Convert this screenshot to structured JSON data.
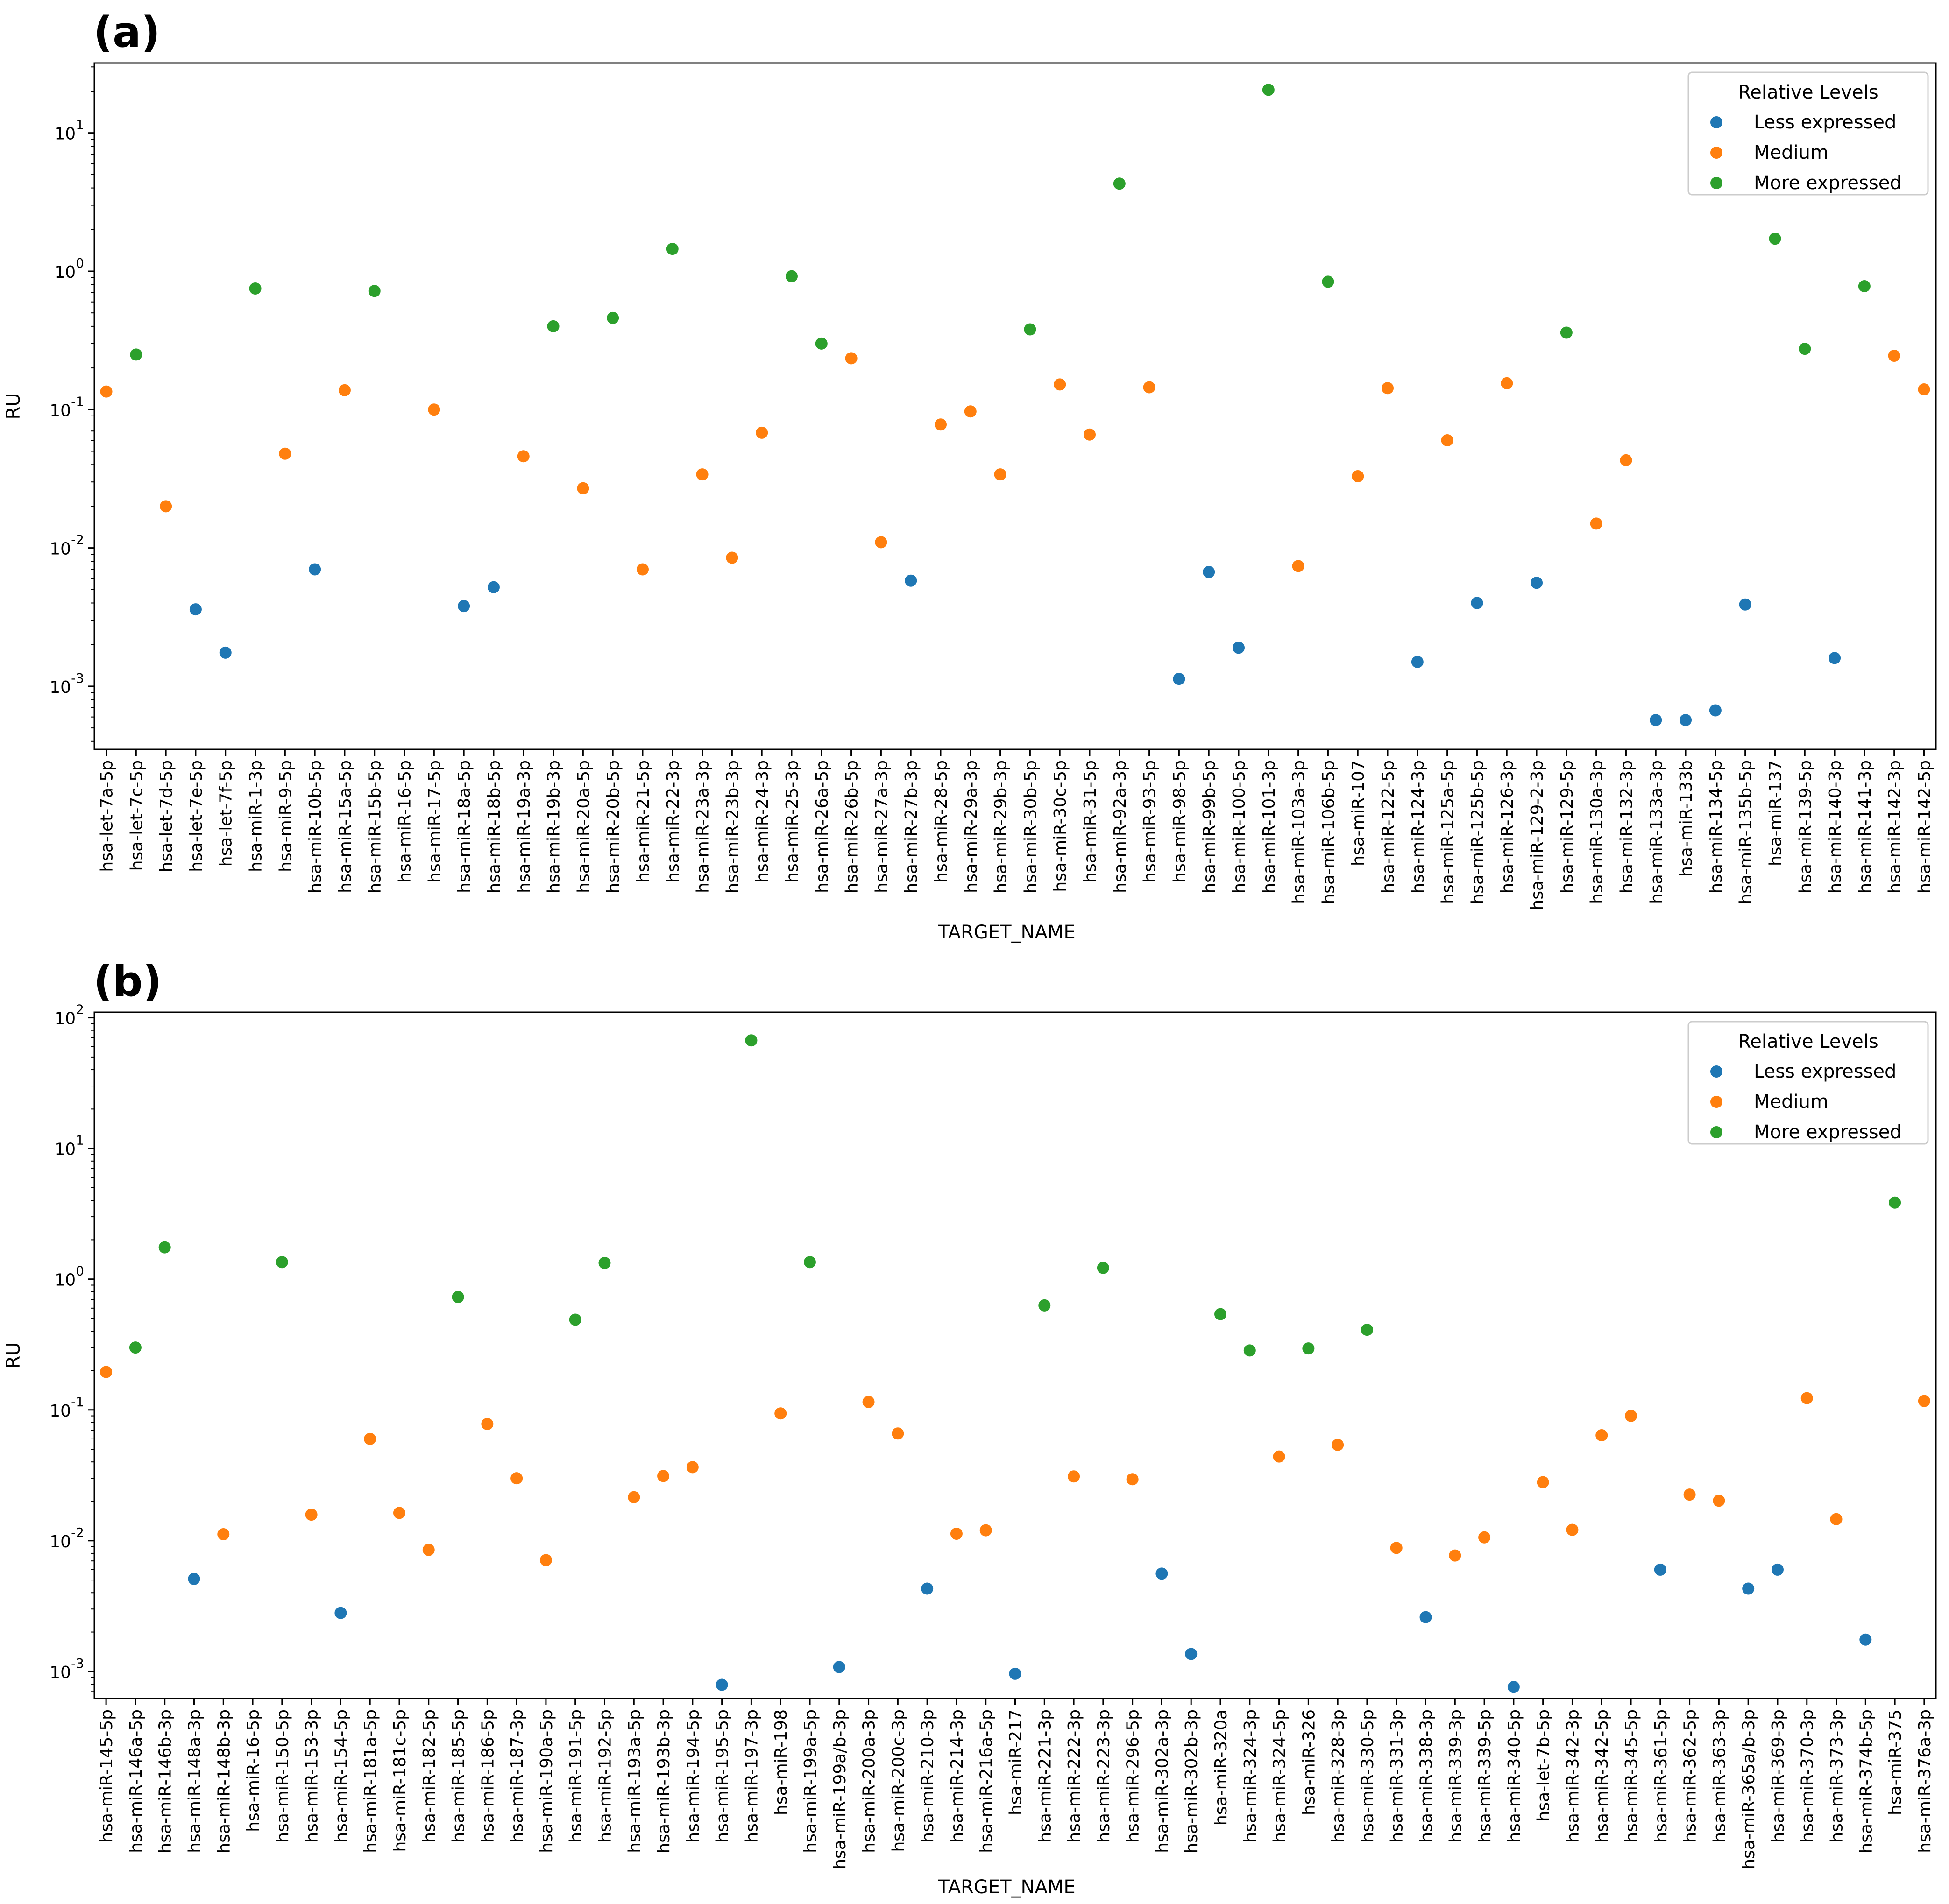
{
  "colors": {
    "Less expressed": "#1f77b4",
    "Medium": "#ff7f0e",
    "More expressed": "#2ca02c"
  },
  "chart_data": [
    {
      "type": "scatter",
      "panel_label": "(a)",
      "xlabel": "TARGET_NAME",
      "ylabel": "RU",
      "yscale": "log",
      "ylim": [
        0.00035,
        32
      ],
      "yticks": [
        0.001,
        0.01,
        0.1,
        1,
        10
      ],
      "ytick_labels": [
        "10^-3",
        "10^-2",
        "10^-1",
        "10^0",
        "10^1"
      ],
      "grid": false,
      "legend": {
        "title": "Relative Levels",
        "position": "top-right",
        "entries": [
          "Less expressed",
          "Medium",
          "More expressed"
        ]
      },
      "categories": [
        "hsa-let-7a-5p",
        "hsa-let-7c-5p",
        "hsa-let-7d-5p",
        "hsa-let-7e-5p",
        "hsa-let-7f-5p",
        "hsa-miR-1-3p",
        "hsa-miR-9-5p",
        "hsa-miR-10b-5p",
        "hsa-miR-15a-5p",
        "hsa-miR-15b-5p",
        "hsa-miR-16-5p",
        "hsa-miR-17-5p",
        "hsa-miR-18a-5p",
        "hsa-miR-18b-5p",
        "hsa-miR-19a-3p",
        "hsa-miR-19b-3p",
        "hsa-miR-20a-5p",
        "hsa-miR-20b-5p",
        "hsa-miR-21-5p",
        "hsa-miR-22-3p",
        "hsa-miR-23a-3p",
        "hsa-miR-23b-3p",
        "hsa-miR-24-3p",
        "hsa-miR-25-3p",
        "hsa-miR-26a-5p",
        "hsa-miR-26b-5p",
        "hsa-miR-27a-3p",
        "hsa-miR-27b-3p",
        "hsa-miR-28-5p",
        "hsa-miR-29a-3p",
        "hsa-miR-29b-3p",
        "hsa-miR-30b-5p",
        "hsa-miR-30c-5p",
        "hsa-miR-31-5p",
        "hsa-miR-92a-3p",
        "hsa-miR-93-5p",
        "hsa-miR-98-5p",
        "hsa-miR-99b-5p",
        "hsa-miR-100-5p",
        "hsa-miR-101-3p",
        "hsa-miR-103a-3p",
        "hsa-miR-106b-5p",
        "hsa-miR-107",
        "hsa-miR-122-5p",
        "hsa-miR-124-3p",
        "hsa-miR-125a-5p",
        "hsa-miR-125b-5p",
        "hsa-miR-126-3p",
        "hsa-miR-129-2-3p",
        "hsa-miR-129-5p",
        "hsa-miR-130a-3p",
        "hsa-miR-132-3p",
        "hsa-miR-133a-3p",
        "hsa-miR-133b",
        "hsa-miR-134-5p",
        "hsa-miR-135b-5p",
        "hsa-miR-137",
        "hsa-miR-139-5p",
        "hsa-miR-140-3p",
        "hsa-miR-141-3p",
        "hsa-miR-142-3p",
        "hsa-miR-142-5p"
      ],
      "points": [
        {
          "x": "hsa-let-7a-5p",
          "y": 0.135,
          "level": "Medium"
        },
        {
          "x": "hsa-let-7c-5p",
          "y": 0.25,
          "level": "More expressed"
        },
        {
          "x": "hsa-let-7d-5p",
          "y": 0.02,
          "level": "Medium"
        },
        {
          "x": "hsa-let-7e-5p",
          "y": 0.0036,
          "level": "Less expressed"
        },
        {
          "x": "hsa-let-7f-5p",
          "y": 0.00175,
          "level": "Less expressed"
        },
        {
          "x": "hsa-miR-1-3p",
          "y": 0.75,
          "level": "More expressed"
        },
        {
          "x": "hsa-miR-9-5p",
          "y": 0.048,
          "level": "Medium"
        },
        {
          "x": "hsa-miR-10b-5p",
          "y": 0.007,
          "level": "Less expressed"
        },
        {
          "x": "hsa-miR-15a-5p",
          "y": 0.138,
          "level": "Medium"
        },
        {
          "x": "hsa-miR-15b-5p",
          "y": 0.72,
          "level": "More expressed"
        },
        {
          "x": "hsa-miR-17-5p",
          "y": 0.1,
          "level": "Medium"
        },
        {
          "x": "hsa-miR-18a-5p",
          "y": 0.0038,
          "level": "Less expressed"
        },
        {
          "x": "hsa-miR-18b-5p",
          "y": 0.0052,
          "level": "Less expressed"
        },
        {
          "x": "hsa-miR-19a-3p",
          "y": 0.046,
          "level": "Medium"
        },
        {
          "x": "hsa-miR-19b-3p",
          "y": 0.4,
          "level": "More expressed"
        },
        {
          "x": "hsa-miR-20a-5p",
          "y": 0.027,
          "level": "Medium"
        },
        {
          "x": "hsa-miR-20b-5p",
          "y": 0.46,
          "level": "More expressed"
        },
        {
          "x": "hsa-miR-21-5p",
          "y": 0.007,
          "level": "Medium"
        },
        {
          "x": "hsa-miR-22-3p",
          "y": 1.45,
          "level": "More expressed"
        },
        {
          "x": "hsa-miR-23a-3p",
          "y": 0.034,
          "level": "Medium"
        },
        {
          "x": "hsa-miR-23b-3p",
          "y": 0.0085,
          "level": "Medium"
        },
        {
          "x": "hsa-miR-24-3p",
          "y": 0.068,
          "level": "Medium"
        },
        {
          "x": "hsa-miR-25-3p",
          "y": 0.92,
          "level": "More expressed"
        },
        {
          "x": "hsa-miR-26a-5p",
          "y": 0.3,
          "level": "More expressed"
        },
        {
          "x": "hsa-miR-26b-5p",
          "y": 0.235,
          "level": "Medium"
        },
        {
          "x": "hsa-miR-27a-3p",
          "y": 0.011,
          "level": "Medium"
        },
        {
          "x": "hsa-miR-27b-3p",
          "y": 0.0058,
          "level": "Less expressed"
        },
        {
          "x": "hsa-miR-28-5p",
          "y": 0.078,
          "level": "Medium"
        },
        {
          "x": "hsa-miR-29a-3p",
          "y": 0.097,
          "level": "Medium"
        },
        {
          "x": "hsa-miR-29b-3p",
          "y": 0.034,
          "level": "Medium"
        },
        {
          "x": "hsa-miR-30b-5p",
          "y": 0.38,
          "level": "More expressed"
        },
        {
          "x": "hsa-miR-30c-5p",
          "y": 0.152,
          "level": "Medium"
        },
        {
          "x": "hsa-miR-31-5p",
          "y": 0.066,
          "level": "Medium"
        },
        {
          "x": "hsa-miR-92a-3p",
          "y": 4.3,
          "level": "More expressed"
        },
        {
          "x": "hsa-miR-93-5p",
          "y": 0.145,
          "level": "Medium"
        },
        {
          "x": "hsa-miR-98-5p",
          "y": 0.00113,
          "level": "Less expressed"
        },
        {
          "x": "hsa-miR-99b-5p",
          "y": 0.0067,
          "level": "Less expressed"
        },
        {
          "x": "hsa-miR-100-5p",
          "y": 0.0019,
          "level": "Less expressed"
        },
        {
          "x": "hsa-miR-101-3p",
          "y": 20.5,
          "level": "More expressed"
        },
        {
          "x": "hsa-miR-103a-3p",
          "y": 0.0074,
          "level": "Medium"
        },
        {
          "x": "hsa-miR-106b-5p",
          "y": 0.84,
          "level": "More expressed"
        },
        {
          "x": "hsa-miR-107",
          "y": 0.033,
          "level": "Medium"
        },
        {
          "x": "hsa-miR-122-5p",
          "y": 0.143,
          "level": "Medium"
        },
        {
          "x": "hsa-miR-124-3p",
          "y": 0.0015,
          "level": "Less expressed"
        },
        {
          "x": "hsa-miR-125a-5p",
          "y": 0.06,
          "level": "Medium"
        },
        {
          "x": "hsa-miR-125b-5p",
          "y": 0.004,
          "level": "Less expressed"
        },
        {
          "x": "hsa-miR-126-3p",
          "y": 0.155,
          "level": "Medium"
        },
        {
          "x": "hsa-miR-129-2-3p",
          "y": 0.0056,
          "level": "Less expressed"
        },
        {
          "x": "hsa-miR-129-5p",
          "y": 0.36,
          "level": "More expressed"
        },
        {
          "x": "hsa-miR-130a-3p",
          "y": 0.015,
          "level": "Medium"
        },
        {
          "x": "hsa-miR-132-3p",
          "y": 0.043,
          "level": "Medium"
        },
        {
          "x": "hsa-miR-133a-3p",
          "y": 0.00057,
          "level": "Less expressed"
        },
        {
          "x": "hsa-miR-133b",
          "y": 0.00057,
          "level": "Less expressed"
        },
        {
          "x": "hsa-miR-134-5p",
          "y": 0.00067,
          "level": "Less expressed"
        },
        {
          "x": "hsa-miR-135b-5p",
          "y": 0.0039,
          "level": "Less expressed"
        },
        {
          "x": "hsa-miR-137",
          "y": 1.72,
          "level": "More expressed"
        },
        {
          "x": "hsa-miR-139-5p",
          "y": 0.275,
          "level": "More expressed"
        },
        {
          "x": "hsa-miR-140-3p",
          "y": 0.0016,
          "level": "Less expressed"
        },
        {
          "x": "hsa-miR-141-3p",
          "y": 0.78,
          "level": "More expressed"
        },
        {
          "x": "hsa-miR-142-3p",
          "y": 0.245,
          "level": "Medium"
        },
        {
          "x": "hsa-miR-142-5p",
          "y": 0.14,
          "level": "Medium"
        }
      ]
    },
    {
      "type": "scatter",
      "panel_label": "(b)",
      "xlabel": "TARGET_NAME",
      "ylabel": "RU",
      "yscale": "log",
      "ylim": [
        0.00062,
        110
      ],
      "yticks": [
        0.001,
        0.01,
        0.1,
        1,
        10,
        100
      ],
      "ytick_labels": [
        "10^-3",
        "10^-2",
        "10^-1",
        "10^0",
        "10^1",
        "10^2"
      ],
      "grid": false,
      "legend": {
        "title": "Relative Levels",
        "position": "top-right",
        "entries": [
          "Less expressed",
          "Medium",
          "More expressed"
        ]
      },
      "categories": [
        "hsa-miR-145-5p",
        "hsa-miR-146a-5p",
        "hsa-miR-146b-3p",
        "hsa-miR-148a-3p",
        "hsa-miR-148b-3p",
        "hsa-miR-16-5p",
        "hsa-miR-150-5p",
        "hsa-miR-153-3p",
        "hsa-miR-154-5p",
        "hsa-miR-181a-5p",
        "hsa-miR-181c-5p",
        "hsa-miR-182-5p",
        "hsa-miR-185-5p",
        "hsa-miR-186-5p",
        "hsa-miR-187-3p",
        "hsa-miR-190a-5p",
        "hsa-miR-191-5p",
        "hsa-miR-192-5p",
        "hsa-miR-193a-5p",
        "hsa-miR-193b-3p",
        "hsa-miR-194-5p",
        "hsa-miR-195-5p",
        "hsa-miR-197-3p",
        "hsa-miR-198",
        "hsa-miR-199a-5p",
        "hsa-miR-199a/b-3p",
        "hsa-miR-200a-3p",
        "hsa-miR-200c-3p",
        "hsa-miR-210-3p",
        "hsa-miR-214-3p",
        "hsa-miR-216a-5p",
        "hsa-miR-217",
        "hsa-miR-221-3p",
        "hsa-miR-222-3p",
        "hsa-miR-223-3p",
        "hsa-miR-296-5p",
        "hsa-miR-302a-3p",
        "hsa-miR-302b-3p",
        "hsa-miR-320a",
        "hsa-miR-324-3p",
        "hsa-miR-324-5p",
        "hsa-miR-326",
        "hsa-miR-328-3p",
        "hsa-miR-330-5p",
        "hsa-miR-331-3p",
        "hsa-miR-338-3p",
        "hsa-miR-339-3p",
        "hsa-miR-339-5p",
        "hsa-miR-340-5p",
        "hsa-let-7b-5p",
        "hsa-miR-342-3p",
        "hsa-miR-342-5p",
        "hsa-miR-345-5p",
        "hsa-miR-361-5p",
        "hsa-miR-362-5p",
        "hsa-miR-363-3p",
        "hsa-miR-365a/b-3p",
        "hsa-miR-369-3p",
        "hsa-miR-370-3p",
        "hsa-miR-373-3p",
        "hsa-miR-374b-5p",
        "hsa-miR-375",
        "hsa-miR-376a-3p"
      ],
      "points": [
        {
          "x": "hsa-miR-145-5p",
          "y": 0.195,
          "level": "Medium"
        },
        {
          "x": "hsa-miR-146a-5p",
          "y": 0.3,
          "level": "More expressed"
        },
        {
          "x": "hsa-miR-146b-3p",
          "y": 1.75,
          "level": "More expressed"
        },
        {
          "x": "hsa-miR-148a-3p",
          "y": 0.0051,
          "level": "Less expressed"
        },
        {
          "x": "hsa-miR-148b-3p",
          "y": 0.0112,
          "level": "Medium"
        },
        {
          "x": "hsa-miR-150-5p",
          "y": 1.35,
          "level": "More expressed"
        },
        {
          "x": "hsa-miR-153-3p",
          "y": 0.0158,
          "level": "Medium"
        },
        {
          "x": "hsa-miR-154-5p",
          "y": 0.0028,
          "level": "Less expressed"
        },
        {
          "x": "hsa-miR-181a-5p",
          "y": 0.06,
          "level": "Medium"
        },
        {
          "x": "hsa-miR-181c-5p",
          "y": 0.0163,
          "level": "Medium"
        },
        {
          "x": "hsa-miR-182-5p",
          "y": 0.0085,
          "level": "Medium"
        },
        {
          "x": "hsa-miR-185-5p",
          "y": 0.73,
          "level": "More expressed"
        },
        {
          "x": "hsa-miR-186-5p",
          "y": 0.078,
          "level": "Medium"
        },
        {
          "x": "hsa-miR-187-3p",
          "y": 0.03,
          "level": "Medium"
        },
        {
          "x": "hsa-miR-190a-5p",
          "y": 0.0071,
          "level": "Medium"
        },
        {
          "x": "hsa-miR-191-5p",
          "y": 0.49,
          "level": "More expressed"
        },
        {
          "x": "hsa-miR-192-5p",
          "y": 1.33,
          "level": "More expressed"
        },
        {
          "x": "hsa-miR-193a-5p",
          "y": 0.0215,
          "level": "Medium"
        },
        {
          "x": "hsa-miR-193b-3p",
          "y": 0.0312,
          "level": "Medium"
        },
        {
          "x": "hsa-miR-194-5p",
          "y": 0.0365,
          "level": "Medium"
        },
        {
          "x": "hsa-miR-195-5p",
          "y": 0.00079,
          "level": "Less expressed"
        },
        {
          "x": "hsa-miR-197-3p",
          "y": 67,
          "level": "More expressed"
        },
        {
          "x": "hsa-miR-198",
          "y": 0.094,
          "level": "Medium"
        },
        {
          "x": "hsa-miR-199a-5p",
          "y": 1.35,
          "level": "More expressed"
        },
        {
          "x": "hsa-miR-199a/b-3p",
          "y": 0.00108,
          "level": "Less expressed"
        },
        {
          "x": "hsa-miR-200a-3p",
          "y": 0.115,
          "level": "Medium"
        },
        {
          "x": "hsa-miR-200c-3p",
          "y": 0.066,
          "level": "Medium"
        },
        {
          "x": "hsa-miR-210-3p",
          "y": 0.0043,
          "level": "Less expressed"
        },
        {
          "x": "hsa-miR-214-3p",
          "y": 0.0113,
          "level": "Medium"
        },
        {
          "x": "hsa-miR-216a-5p",
          "y": 0.012,
          "level": "Medium"
        },
        {
          "x": "hsa-miR-217",
          "y": 0.00096,
          "level": "Less expressed"
        },
        {
          "x": "hsa-miR-221-3p",
          "y": 0.63,
          "level": "More expressed"
        },
        {
          "x": "hsa-miR-222-3p",
          "y": 0.031,
          "level": "Medium"
        },
        {
          "x": "hsa-miR-223-3p",
          "y": 1.22,
          "level": "More expressed"
        },
        {
          "x": "hsa-miR-296-5p",
          "y": 0.0295,
          "level": "Medium"
        },
        {
          "x": "hsa-miR-302a-3p",
          "y": 0.0056,
          "level": "Less expressed"
        },
        {
          "x": "hsa-miR-302b-3p",
          "y": 0.00136,
          "level": "Less expressed"
        },
        {
          "x": "hsa-miR-320a",
          "y": 0.54,
          "level": "More expressed"
        },
        {
          "x": "hsa-miR-324-3p",
          "y": 0.285,
          "level": "More expressed"
        },
        {
          "x": "hsa-miR-324-5p",
          "y": 0.044,
          "level": "Medium"
        },
        {
          "x": "hsa-miR-326",
          "y": 0.295,
          "level": "More expressed"
        },
        {
          "x": "hsa-miR-328-3p",
          "y": 0.054,
          "level": "Medium"
        },
        {
          "x": "hsa-miR-330-5p",
          "y": 0.41,
          "level": "More expressed"
        },
        {
          "x": "hsa-miR-331-3p",
          "y": 0.0088,
          "level": "Medium"
        },
        {
          "x": "hsa-miR-338-3p",
          "y": 0.0026,
          "level": "Less expressed"
        },
        {
          "x": "hsa-miR-339-3p",
          "y": 0.0077,
          "level": "Medium"
        },
        {
          "x": "hsa-miR-339-5p",
          "y": 0.0106,
          "level": "Medium"
        },
        {
          "x": "hsa-miR-340-5p",
          "y": 0.00076,
          "level": "Less expressed"
        },
        {
          "x": "hsa-let-7b-5p",
          "y": 0.028,
          "level": "Medium"
        },
        {
          "x": "hsa-miR-342-3p",
          "y": 0.0121,
          "level": "Medium"
        },
        {
          "x": "hsa-miR-342-5p",
          "y": 0.064,
          "level": "Medium"
        },
        {
          "x": "hsa-miR-345-5p",
          "y": 0.09,
          "level": "Medium"
        },
        {
          "x": "hsa-miR-361-5p",
          "y": 0.006,
          "level": "Less expressed"
        },
        {
          "x": "hsa-miR-362-5p",
          "y": 0.0225,
          "level": "Medium"
        },
        {
          "x": "hsa-miR-363-3p",
          "y": 0.0202,
          "level": "Medium"
        },
        {
          "x": "hsa-miR-365a/b-3p",
          "y": 0.0043,
          "level": "Less expressed"
        },
        {
          "x": "hsa-miR-369-3p",
          "y": 0.006,
          "level": "Less expressed"
        },
        {
          "x": "hsa-miR-370-3p",
          "y": 0.123,
          "level": "Medium"
        },
        {
          "x": "hsa-miR-373-3p",
          "y": 0.0146,
          "level": "Medium"
        },
        {
          "x": "hsa-miR-374b-5p",
          "y": 0.00175,
          "level": "Less expressed"
        },
        {
          "x": "hsa-miR-375",
          "y": 3.85,
          "level": "More expressed"
        },
        {
          "x": "hsa-miR-376a-3p",
          "y": 0.117,
          "level": "Medium"
        }
      ]
    }
  ]
}
